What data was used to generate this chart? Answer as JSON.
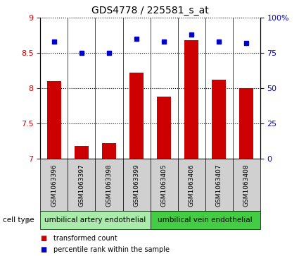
{
  "title": "GDS4778 / 225581_s_at",
  "samples": [
    "GSM1063396",
    "GSM1063397",
    "GSM1063398",
    "GSM1063399",
    "GSM1063405",
    "GSM1063406",
    "GSM1063407",
    "GSM1063408"
  ],
  "transformed_counts": [
    8.1,
    7.18,
    7.22,
    8.22,
    7.88,
    8.68,
    8.12,
    8.0
  ],
  "percentile_ranks": [
    83,
    75,
    75,
    85,
    83,
    88,
    83,
    82
  ],
  "ylim_left": [
    7,
    9
  ],
  "ylim_right": [
    0,
    100
  ],
  "yticks_left": [
    7,
    7.5,
    8,
    8.5,
    9
  ],
  "yticks_right": [
    0,
    25,
    50,
    75,
    100
  ],
  "ytick_labels_right": [
    "0",
    "25",
    "50",
    "75",
    "100%"
  ],
  "bar_color": "#cc0000",
  "dot_color": "#0000cc",
  "cell_type_groups": [
    {
      "label": "umbilical artery endothelial",
      "start": 0,
      "end": 4,
      "color": "#aaeaaa"
    },
    {
      "label": "umbilical vein endothelial",
      "start": 4,
      "end": 8,
      "color": "#44cc44"
    }
  ],
  "cell_type_label": "cell type",
  "legend_items": [
    {
      "label": "transformed count",
      "color": "#cc0000"
    },
    {
      "label": "percentile rank within the sample",
      "color": "#0000cc"
    }
  ],
  "bar_width": 0.5,
  "base_value": 7.0,
  "grey_box_color": "#d0d0d0",
  "left_tick_color": "#cc0000",
  "right_tick_color": "#0000cc"
}
